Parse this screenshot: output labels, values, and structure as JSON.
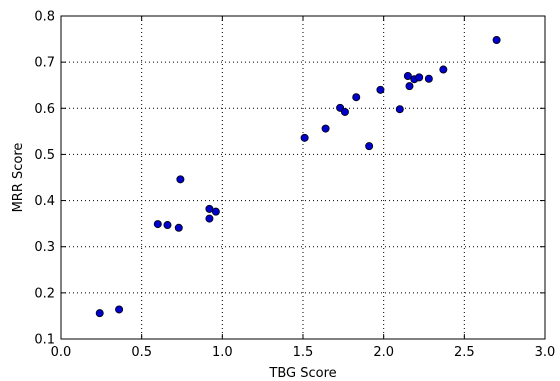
{
  "chart_data": {
    "type": "scatter",
    "title": "",
    "xlabel": "TBG Score",
    "ylabel": "MRR Score",
    "xlim": [
      0.0,
      3.0
    ],
    "ylim": [
      0.1,
      0.8
    ],
    "xticks": [
      0.0,
      0.5,
      1.0,
      1.5,
      2.0,
      2.5,
      3.0
    ],
    "xtick_labels": [
      "0.0",
      "0.5",
      "1.0",
      "1.5",
      "2.0",
      "2.5",
      "3.0"
    ],
    "yticks": [
      0.1,
      0.2,
      0.3,
      0.4,
      0.5,
      0.6,
      0.7,
      0.8
    ],
    "ytick_labels": [
      "0.1",
      "0.2",
      "0.3",
      "0.4",
      "0.5",
      "0.6",
      "0.7",
      "0.8"
    ],
    "grid": true,
    "marker_color": "#0000cc",
    "series": [
      {
        "points": [
          {
            "x": 0.24,
            "y": 0.156
          },
          {
            "x": 0.36,
            "y": 0.164
          },
          {
            "x": 0.6,
            "y": 0.349
          },
          {
            "x": 0.66,
            "y": 0.347
          },
          {
            "x": 0.73,
            "y": 0.341
          },
          {
            "x": 0.74,
            "y": 0.446
          },
          {
            "x": 0.92,
            "y": 0.382
          },
          {
            "x": 0.92,
            "y": 0.361
          },
          {
            "x": 0.96,
            "y": 0.376
          },
          {
            "x": 1.51,
            "y": 0.536
          },
          {
            "x": 1.64,
            "y": 0.556
          },
          {
            "x": 1.73,
            "y": 0.601
          },
          {
            "x": 1.76,
            "y": 0.592
          },
          {
            "x": 1.83,
            "y": 0.624
          },
          {
            "x": 1.91,
            "y": 0.518
          },
          {
            "x": 1.98,
            "y": 0.64
          },
          {
            "x": 2.1,
            "y": 0.598
          },
          {
            "x": 2.15,
            "y": 0.67
          },
          {
            "x": 2.16,
            "y": 0.648
          },
          {
            "x": 2.19,
            "y": 0.663
          },
          {
            "x": 2.22,
            "y": 0.667
          },
          {
            "x": 2.28,
            "y": 0.664
          },
          {
            "x": 2.37,
            "y": 0.684
          },
          {
            "x": 2.7,
            "y": 0.748
          }
        ]
      }
    ]
  }
}
